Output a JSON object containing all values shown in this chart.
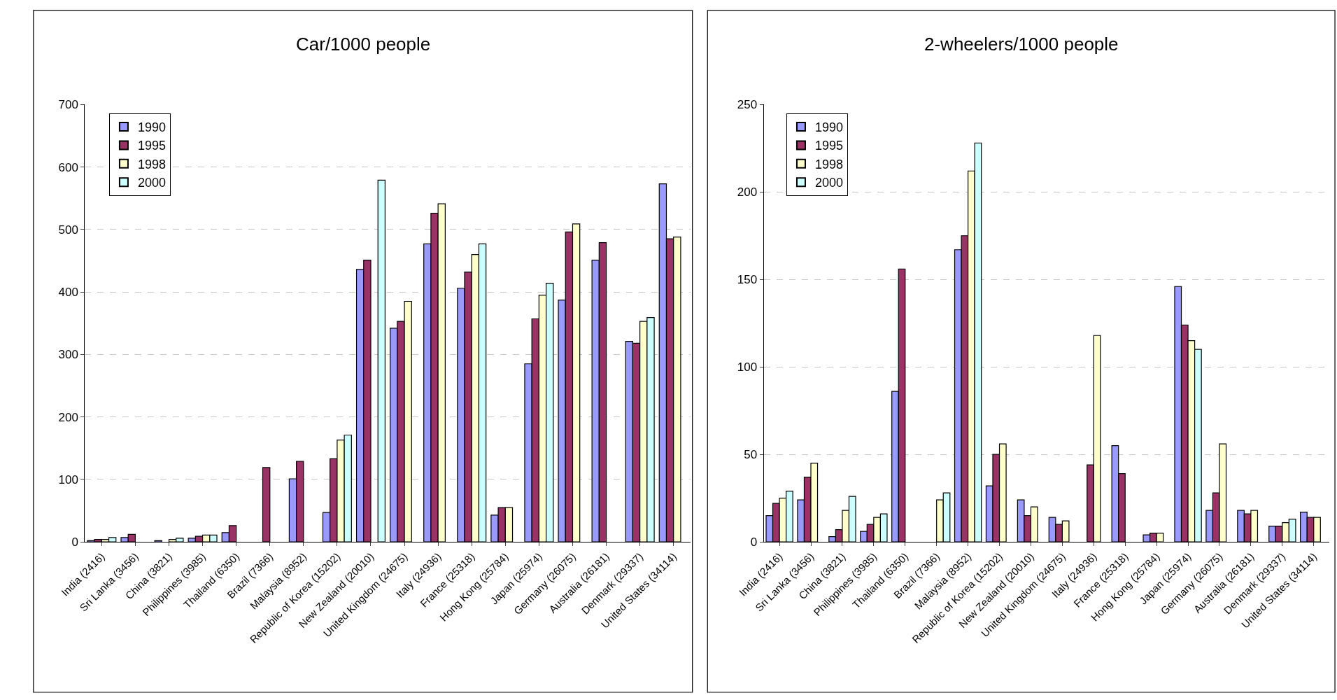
{
  "chart_data": [
    {
      "type": "bar",
      "title": "Car/1000 people",
      "categories": [
        "India (2416)",
        "Sri Lanka (3456)",
        "China (3821)",
        "Philippines (3985)",
        "Thailand (6350)",
        "Brazil (7366)",
        "Malaysia (8952)",
        "Republic of Korea (15202)",
        "New Zealand (20010)",
        "United Kingdom (24675)",
        "Italy (24936)",
        "France (25318)",
        "Hong Kong (25784)",
        "Japan (25974)",
        "Germany (26075)",
        "Australia (26181)",
        "Denmark (29337)",
        "United States (34114)"
      ],
      "series": [
        {
          "name": "1990",
          "color": "#9999ff",
          "values": [
            2,
            7,
            2,
            6,
            15,
            null,
            101,
            47,
            436,
            342,
            477,
            406,
            43,
            285,
            387,
            451,
            321,
            573
          ]
        },
        {
          "name": "1995",
          "color": "#993366",
          "values": [
            4,
            12,
            null,
            9,
            26,
            119,
            129,
            133,
            451,
            353,
            526,
            432,
            55,
            357,
            496,
            479,
            318,
            485
          ]
        },
        {
          "name": "1998",
          "color": "#ffffcc",
          "values": [
            4,
            null,
            4,
            11,
            null,
            null,
            null,
            163,
            null,
            385,
            541,
            460,
            55,
            395,
            509,
            null,
            353,
            488
          ]
        },
        {
          "name": "2000",
          "color": "#ccffff",
          "values": [
            7,
            null,
            6,
            11,
            null,
            null,
            null,
            171,
            579,
            null,
            null,
            477,
            null,
            414,
            null,
            null,
            359,
            null
          ]
        }
      ],
      "ylim": [
        0,
        700
      ],
      "yticks": [
        0,
        100,
        200,
        300,
        400,
        500,
        600,
        700
      ],
      "grid": "y",
      "legend": "top left"
    },
    {
      "type": "bar",
      "title": "2-wheelers/1000 people",
      "categories": [
        "India (2416)",
        "Sri Lanka (3456)",
        "China (3821)",
        "Philippines (3985)",
        "Thailand (6350)",
        "Brazil (7366)",
        "Malaysia (8952)",
        "Republic of Korea (15202)",
        "New Zealand (20010)",
        "United Kingdom (24675)",
        "Italy (24936)",
        "France (25318)",
        "Hong Kong (25784)",
        "Japan (25974)",
        "Germany (26075)",
        "Australia (26181)",
        "Denmark (29337)",
        "United States (34114)"
      ],
      "series": [
        {
          "name": "1990",
          "color": "#9999ff",
          "values": [
            15,
            24,
            3,
            6,
            86,
            null,
            167,
            32,
            24,
            14,
            null,
            55,
            4,
            146,
            18,
            18,
            9,
            17
          ]
        },
        {
          "name": "1995",
          "color": "#993366",
          "values": [
            22,
            37,
            7,
            10,
            156,
            null,
            175,
            50,
            15,
            10,
            44,
            39,
            5,
            124,
            28,
            16,
            9,
            14
          ]
        },
        {
          "name": "1998",
          "color": "#ffffcc",
          "values": [
            25,
            45,
            18,
            14,
            null,
            24,
            212,
            56,
            20,
            12,
            118,
            null,
            5,
            115,
            56,
            18,
            11,
            14
          ]
        },
        {
          "name": "2000",
          "color": "#ccffff",
          "values": [
            29,
            null,
            26,
            16,
            null,
            28,
            228,
            null,
            null,
            null,
            null,
            null,
            null,
            110,
            null,
            null,
            13,
            null
          ]
        }
      ],
      "ylim": [
        0,
        250
      ],
      "yticks": [
        0,
        50,
        100,
        150,
        200,
        250
      ],
      "grid": "y",
      "legend": "top left"
    }
  ]
}
